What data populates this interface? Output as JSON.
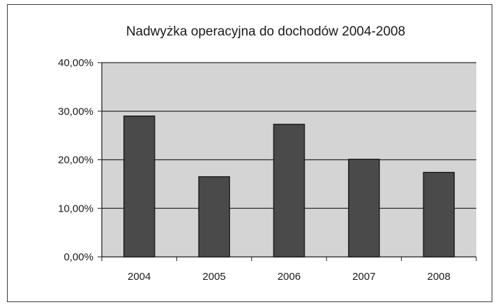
{
  "chart_data": {
    "type": "bar",
    "title": "Nadwyżka operacyjna do dochodów 2004-2008",
    "xlabel": "",
    "ylabel": "",
    "categories": [
      "2004",
      "2005",
      "2006",
      "2007",
      "2008"
    ],
    "values": [
      29.0,
      16.5,
      27.3,
      20.1,
      17.4
    ],
    "y_unit": "%",
    "ylim": [
      0,
      40
    ],
    "yticks": [
      0,
      10,
      20,
      30,
      40
    ],
    "ytick_labels": [
      "0,00%",
      "10,00%",
      "20,00%",
      "30,00%",
      "40,00%"
    ],
    "grid": true,
    "legend": "none",
    "colors": {
      "bar": "#4a4a4a",
      "bar_edge": "#1e1e1e",
      "plot_background": "#d4d4d4",
      "gridline": "#2a2a2a"
    }
  }
}
